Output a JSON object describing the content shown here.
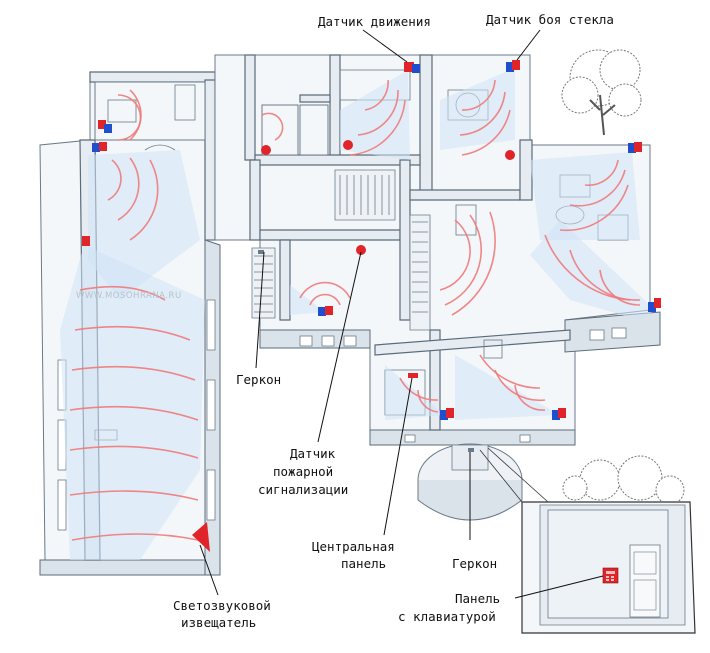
{
  "watermark": "WWW.MOSOHRANA.RU",
  "labels": {
    "motion_sensor": "Датчик движения",
    "glass_break_sensor": "Датчик боя стекла",
    "reed_switch_left": "Геркон",
    "fire_sensor_line1": "Датчик",
    "fire_sensor_line2": "пожарной",
    "fire_sensor_line3": "сигнализации",
    "central_panel_line1": "Центральная",
    "central_panel_line2": "панель",
    "reed_switch_right": "Геркон",
    "keypad_panel_line1": "Панель",
    "keypad_panel_line2": "с клавиатурой",
    "siren_line1": "Светозвуковой",
    "siren_line2": "извещатель"
  },
  "colors": {
    "sensor_red": "#e0242a",
    "sensor_blue": "#1f4fcf",
    "wave": "#f07a7a",
    "beam": "#cfe3f5",
    "wall": "#e6ecf2"
  }
}
